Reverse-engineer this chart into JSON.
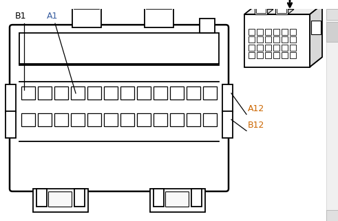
{
  "bg_color": "#ffffff",
  "line_color": "#000000",
  "label_color_orange": "#cc6600",
  "label_b1_color": "#000000",
  "label_a1_color": "#3366cc",
  "connector_bg": "#ffffff",
  "pin_rows": 2,
  "pin_cols": 12,
  "labels": [
    "B1",
    "A1",
    "A12",
    "B12"
  ]
}
